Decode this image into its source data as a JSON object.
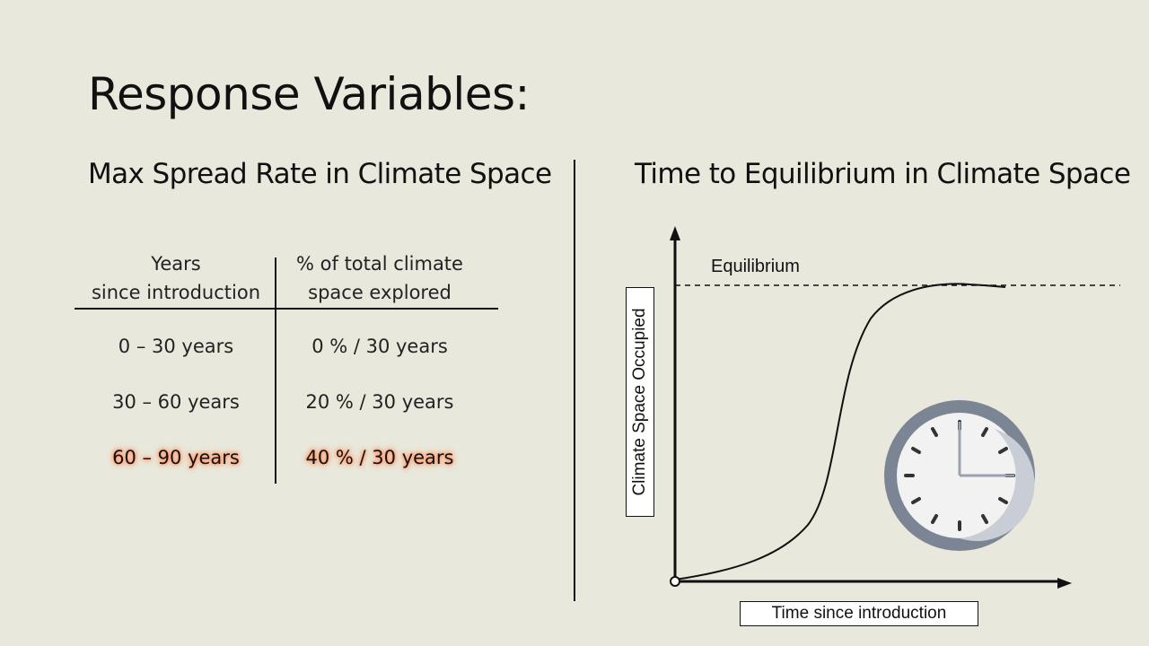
{
  "slide": {
    "title": "Response Variables:"
  },
  "left_section": {
    "heading": "Max Spread Rate in Climate Space",
    "table": {
      "headers": [
        [
          "Years",
          "since introduction"
        ],
        [
          "% of total climate",
          "space explored"
        ]
      ],
      "rows": [
        {
          "years": "0 – 30 years",
          "percent": "0 % / 30 years",
          "highlighted": false
        },
        {
          "years": "30 – 60 years",
          "percent": "20 % / 30 years",
          "highlighted": false
        },
        {
          "years": "60 – 90 years",
          "percent": "40 % / 30 years",
          "highlighted": true
        }
      ]
    }
  },
  "right_section": {
    "heading": "Time to Equilibrium in Climate Space",
    "diagram": {
      "equilibrium_label": "Equilibrium",
      "x_axis_label": "Time since introduction",
      "y_axis_label": "Climate Space Occupied",
      "clock_icon": "clock-icon",
      "clock_colors": {
        "rim": "#7b8594",
        "face": "#f2f2f2",
        "hands": "#9aa3ad",
        "ticks": "#333333"
      }
    }
  }
}
